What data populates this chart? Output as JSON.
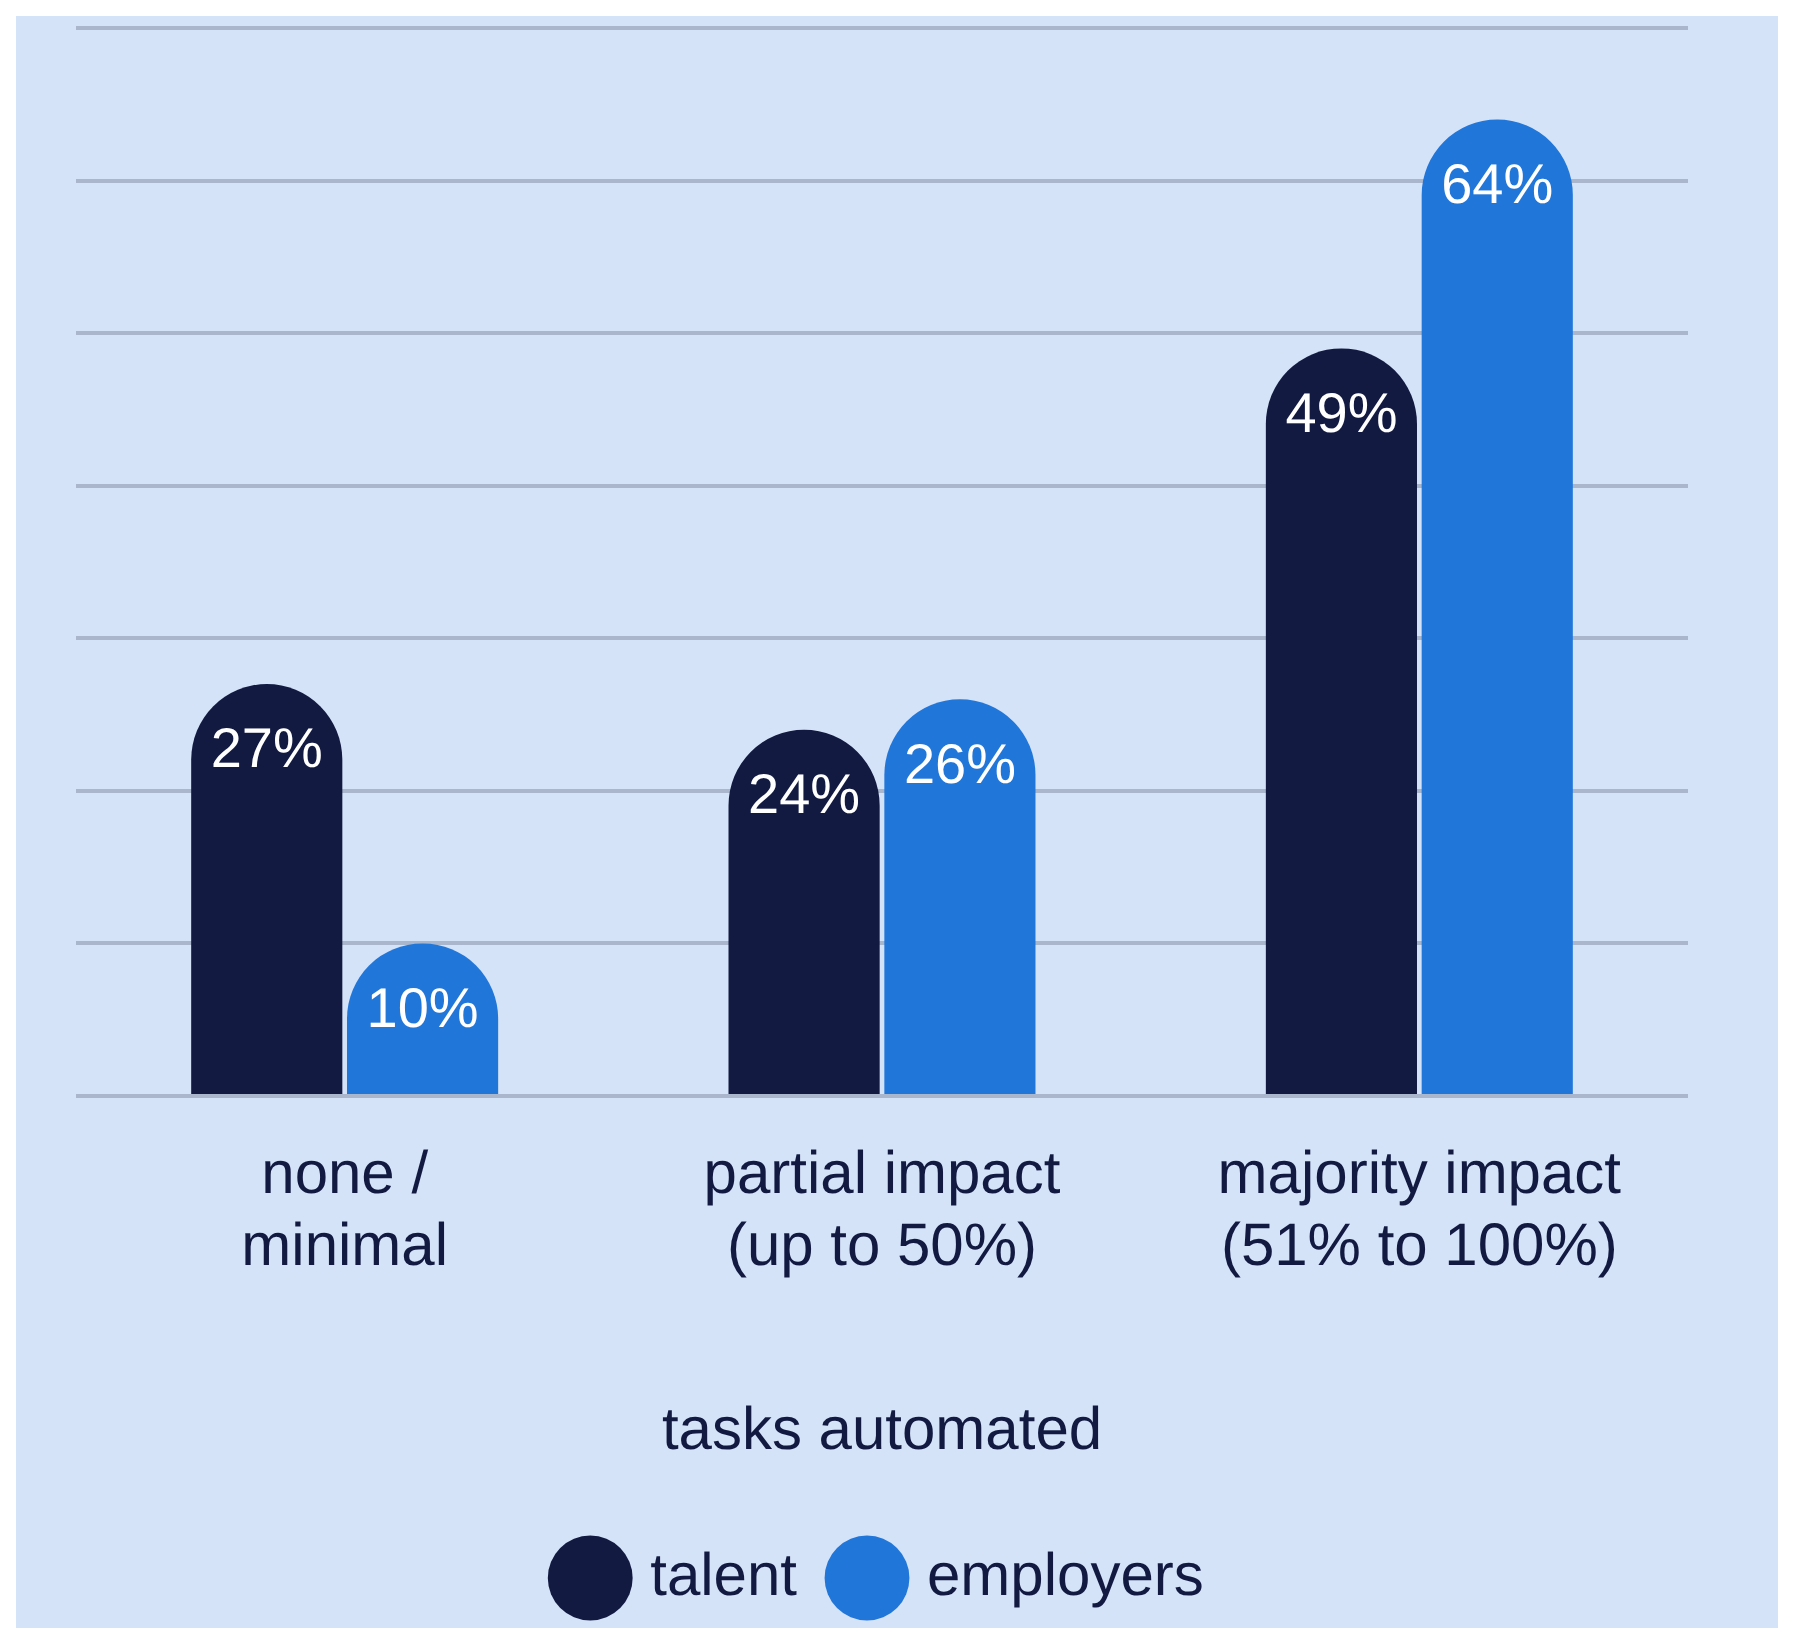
{
  "chart_data": {
    "type": "bar",
    "xlabel": "tasks automated",
    "categories": [
      "none / minimal",
      "partial impact (up to 50%)",
      "majority impact (51% to 100%)"
    ],
    "series": [
      {
        "name": "talent",
        "color": "#121a42",
        "values": [
          27,
          24,
          49
        ],
        "value_labels": [
          "27%",
          "24%",
          "49%"
        ]
      },
      {
        "name": "employers",
        "color": "#2176d9",
        "values": [
          10,
          26,
          64
        ],
        "value_labels": [
          "10%",
          "26%",
          "64%"
        ]
      }
    ],
    "grid": "y",
    "legend": "bottom"
  }
}
